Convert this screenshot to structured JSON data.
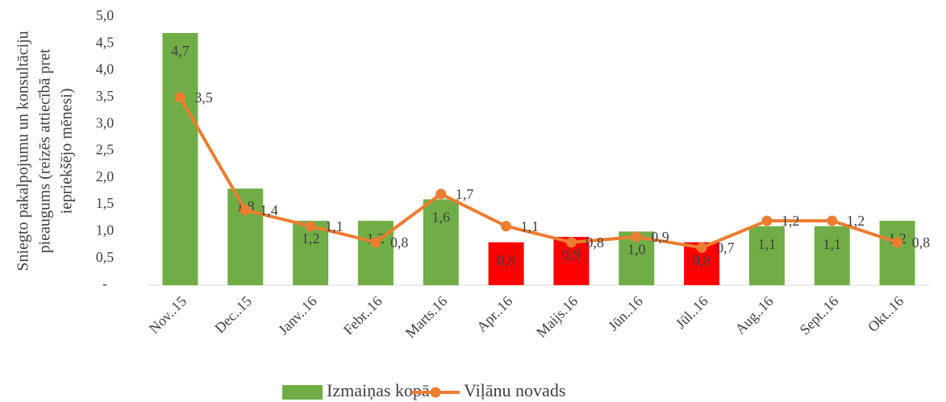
{
  "chart_data": {
    "type": "combo",
    "ylabel": [
      "Sniegto pakalpojumu un konsultāciju",
      "pieaugums (reizēs attiecībā pret",
      "iepriekšējo mēnesi)"
    ],
    "categories": [
      "Nov..15",
      "Dec..15",
      "Janv..16",
      "Febr..16",
      "Marts.16",
      "Apr..16",
      "Maijs.16",
      "Jūn..16",
      "Jūl..16",
      "Aug..16",
      "Sept..16",
      "Okt..16"
    ],
    "series": [
      {
        "name": "Izmaiņas kopā",
        "type": "bar",
        "color": "#70ad47",
        "colors": [
          "#70ad47",
          "#70ad47",
          "#70ad47",
          "#70ad47",
          "#70ad47",
          "#ff0000",
          "#ff0000",
          "#70ad47",
          "#ff0000",
          "#70ad47",
          "#70ad47",
          "#70ad47"
        ],
        "values": [
          4.7,
          1.8,
          1.2,
          1.2,
          1.6,
          0.8,
          0.9,
          1.0,
          0.8,
          1.1,
          1.1,
          1.2
        ],
        "value_labels": [
          "4,7",
          "1,8",
          "1,2",
          "1,2",
          "1,6",
          "0,8",
          "0,9",
          "1,0",
          "0,8",
          "1,1",
          "1,1",
          "1,2"
        ]
      },
      {
        "name": "Viļānu novads",
        "type": "line",
        "color": "#ed7d31",
        "values": [
          3.5,
          1.4,
          1.1,
          0.8,
          1.7,
          1.1,
          0.8,
          0.9,
          0.7,
          1.2,
          1.2,
          0.8
        ],
        "value_labels": [
          "3,5",
          "1,4",
          "1,1",
          "0,8",
          "1,7",
          "1,1",
          "0,8",
          "0,9",
          "0,7",
          "1,2",
          "1,2",
          "0,8"
        ]
      }
    ],
    "ylim": [
      0,
      5
    ],
    "yticks": [
      {
        "value": 0,
        "label": "-"
      },
      {
        "value": 0.5,
        "label": "0,5"
      },
      {
        "value": 1,
        "label": "1,0"
      },
      {
        "value": 1.5,
        "label": "1,5"
      },
      {
        "value": 2,
        "label": "2,0"
      },
      {
        "value": 2.5,
        "label": "2,5"
      },
      {
        "value": 3,
        "label": "3,0"
      },
      {
        "value": 3.5,
        "label": "3,5"
      },
      {
        "value": 4,
        "label": "4,0"
      },
      {
        "value": 4.5,
        "label": "4,5"
      },
      {
        "value": 5,
        "label": "5,0"
      }
    ]
  }
}
